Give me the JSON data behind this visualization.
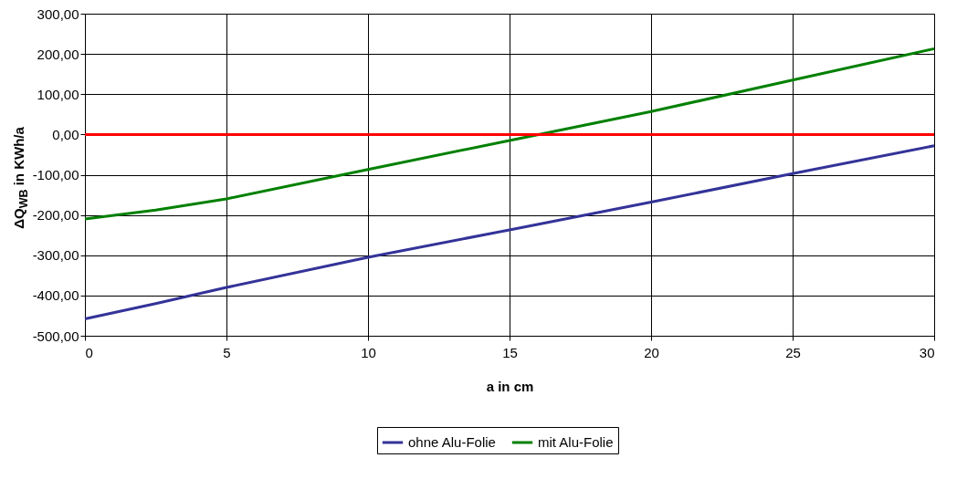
{
  "chart_data": {
    "type": "line",
    "xlabel": "a in cm",
    "ylabel": "ΔQ$_{WB}$ in KWh/a",
    "x": [
      0,
      2.5,
      5,
      10,
      15,
      20,
      25,
      30
    ],
    "series": [
      {
        "name": "ohne Alu-Folie",
        "color": "#333399",
        "values": [
          -458,
          -420,
          -380,
          -305,
          -237,
          -168,
          -97,
          -28
        ]
      },
      {
        "name": "mit Alu-Folie",
        "color": "#008000",
        "values": [
          -210,
          -188,
          -160,
          -87,
          -15,
          57,
          135,
          213
        ]
      }
    ],
    "ref_lines": [
      {
        "axis": "y",
        "value": 0,
        "color": "#ff0000"
      }
    ],
    "xlim": [
      0,
      30
    ],
    "xticks": [
      0,
      5,
      10,
      15,
      20,
      25,
      30
    ],
    "ylim": [
      -500,
      300
    ],
    "yticks": [
      {
        "value": -500,
        "label": "-500,00"
      },
      {
        "value": -400,
        "label": "-400,00"
      },
      {
        "value": -300,
        "label": "-300,00"
      },
      {
        "value": -200,
        "label": "-200,00"
      },
      {
        "value": -100,
        "label": "-100,00"
      },
      {
        "value": 0,
        "label": "0,00"
      },
      {
        "value": 100,
        "label": "100,00"
      },
      {
        "value": 200,
        "label": "200,00"
      },
      {
        "value": 300,
        "label": "300,00"
      }
    ],
    "grid": true,
    "legend": "bottom"
  }
}
